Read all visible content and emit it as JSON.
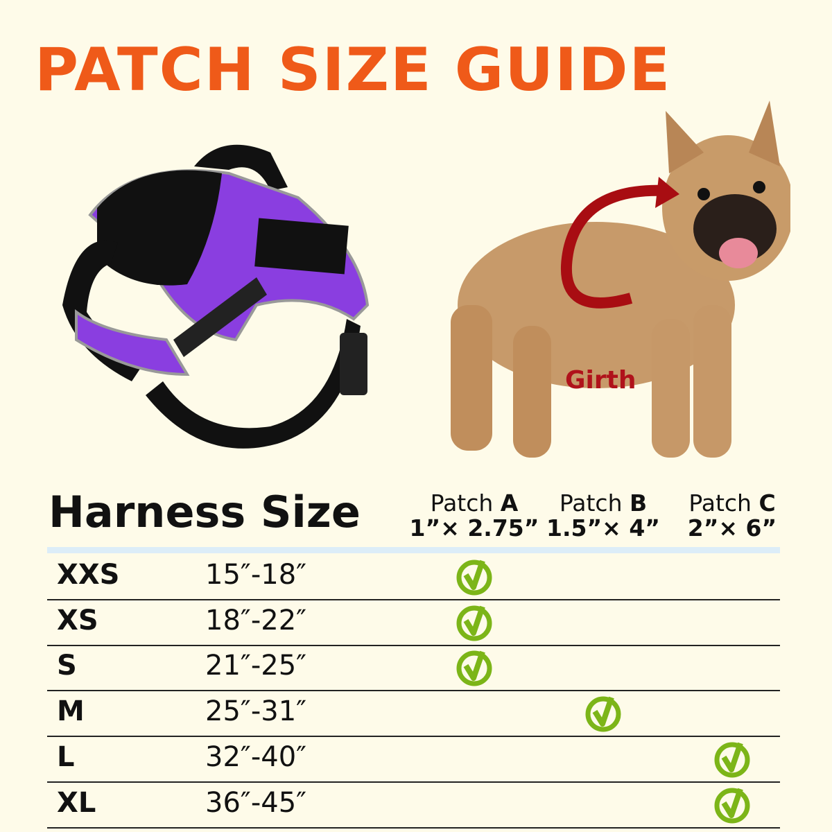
{
  "title": "PATCH SIZE GUIDE",
  "girth_label": "Girth",
  "table": {
    "heading": "Harness Size",
    "patches": [
      {
        "name": "Patch",
        "letter": "A",
        "dims": "1”× 2.75”"
      },
      {
        "name": "Patch",
        "letter": "B",
        "dims": "1.5”× 4”"
      },
      {
        "name": "Patch",
        "letter": "C",
        "dims": "2”× 6”"
      }
    ],
    "rows": [
      {
        "size": "XXS",
        "range": "15″-18″",
        "patch": "A"
      },
      {
        "size": "XS",
        "range": "18″-22″",
        "patch": "A"
      },
      {
        "size": "S",
        "range": "21″-25″",
        "patch": "A"
      },
      {
        "size": "M",
        "range": "25″-31″",
        "patch": "B"
      },
      {
        "size": "L",
        "range": "32″-40″",
        "patch": "C"
      },
      {
        "size": "XL",
        "range": "36″-45″",
        "patch": "C"
      }
    ]
  },
  "colors": {
    "title": "#ef5a19",
    "check": "#7cb518",
    "girth": "#b0121b",
    "harness": "#8a3ee0"
  },
  "icons": {
    "fit": "check-circle-icon"
  }
}
